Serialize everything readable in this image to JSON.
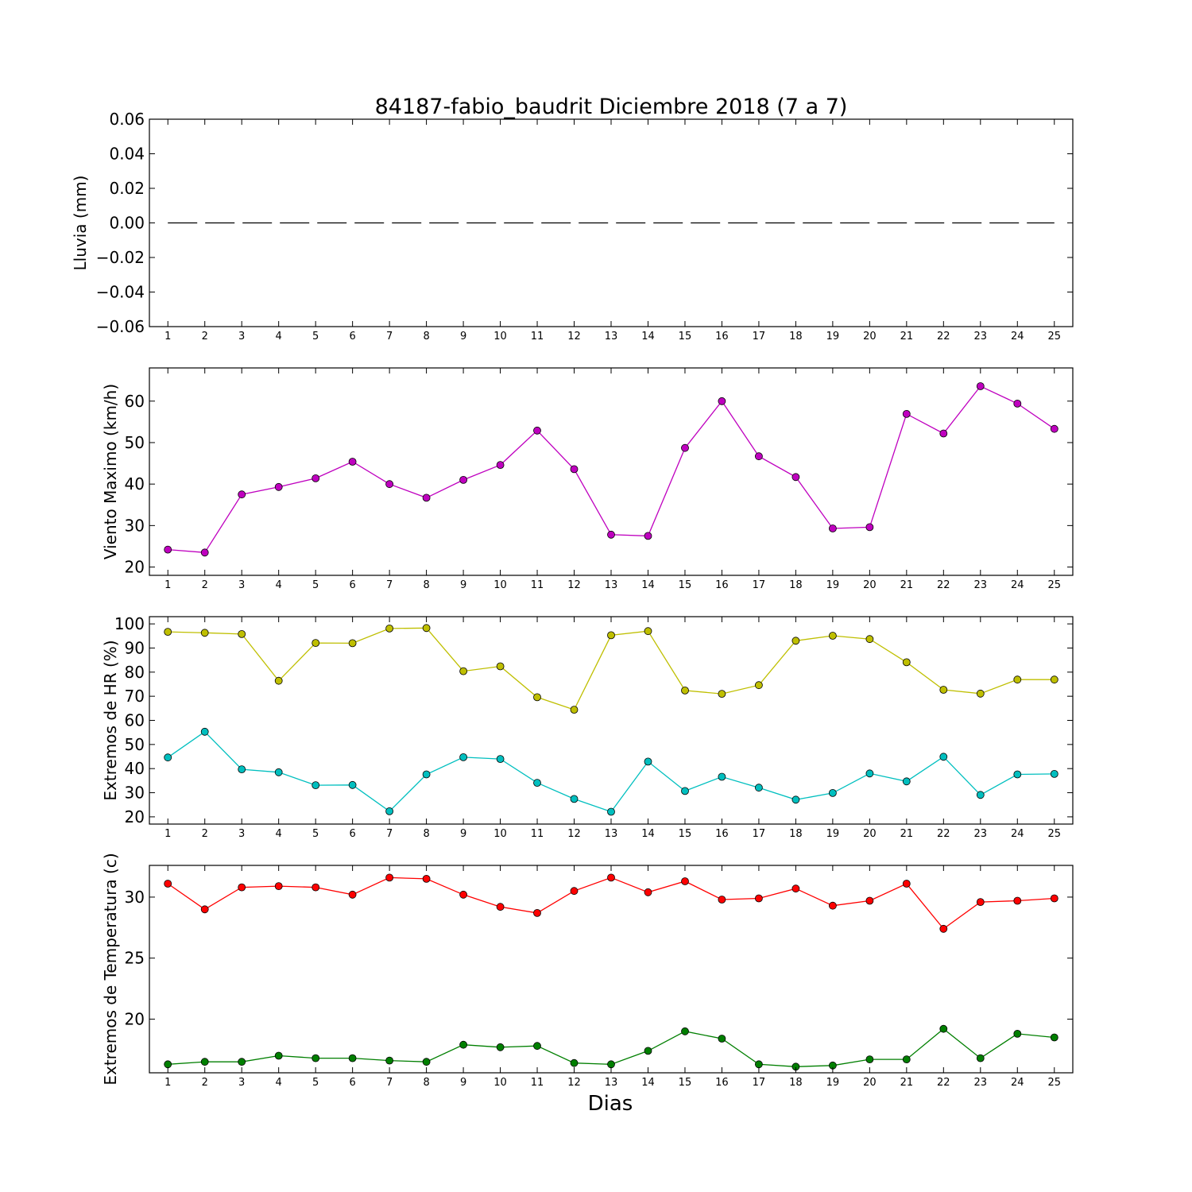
{
  "chart_data": [
    {
      "type": "line",
      "title": "84187-fabio_baudrit Diciembre 2018  (7 a 7)",
      "xlabel": "",
      "ylabel": "Lluvia (mm)",
      "x": [
        1,
        2,
        3,
        4,
        5,
        6,
        7,
        8,
        9,
        10,
        11,
        12,
        13,
        14,
        15,
        16,
        17,
        18,
        19,
        20,
        21,
        22,
        23,
        24,
        25
      ],
      "xlim": [
        0.5,
        25.5
      ],
      "ylim": [
        -0.06,
        0.06
      ],
      "yticks": [
        0.06,
        0.04,
        0.02,
        0.0,
        -0.02,
        -0.04,
        -0.06
      ],
      "ytick_labels": [
        "0.06",
        "0.04",
        "0.02",
        "0.00",
        "−0.02",
        "−0.04",
        "−0.06"
      ],
      "series": [
        {
          "color": "#000000",
          "style": "dashed",
          "marker": "none",
          "values": [
            0,
            0,
            0,
            0,
            0,
            0,
            0,
            0,
            0,
            0,
            0,
            0,
            0,
            0,
            0,
            0,
            0,
            0,
            0,
            0,
            0,
            0,
            0,
            0,
            0
          ]
        }
      ]
    },
    {
      "type": "line",
      "title": "",
      "xlabel": "",
      "ylabel": "Viento Maximo (km/h)",
      "x": [
        1,
        2,
        3,
        4,
        5,
        6,
        7,
        8,
        9,
        10,
        11,
        12,
        13,
        14,
        15,
        16,
        17,
        18,
        19,
        20,
        21,
        22,
        23,
        24,
        25
      ],
      "xlim": [
        0.5,
        25.5
      ],
      "ylim": [
        18,
        68
      ],
      "yticks": [
        20,
        30,
        40,
        50,
        60
      ],
      "ytick_labels": [
        "20",
        "30",
        "40",
        "50",
        "60"
      ],
      "series": [
        {
          "color": "#bf00bf",
          "style": "solid",
          "marker": "circle",
          "values": [
            24.2,
            23.5,
            37.5,
            39.3,
            41.4,
            45.4,
            40.0,
            36.7,
            41.0,
            44.6,
            52.9,
            43.6,
            27.8,
            27.5,
            48.7,
            60.0,
            46.7,
            41.7,
            29.3,
            29.6,
            56.9,
            52.2,
            63.6,
            59.4,
            53.3
          ]
        }
      ]
    },
    {
      "type": "line",
      "title": "",
      "xlabel": "",
      "ylabel": "Extremos de HR (%)",
      "x": [
        1,
        2,
        3,
        4,
        5,
        6,
        7,
        8,
        9,
        10,
        11,
        12,
        13,
        14,
        15,
        16,
        17,
        18,
        19,
        20,
        21,
        22,
        23,
        24,
        25
      ],
      "xlim": [
        0.5,
        25.5
      ],
      "ylim": [
        17,
        103
      ],
      "yticks": [
        20,
        30,
        40,
        50,
        60,
        70,
        80,
        90,
        100
      ],
      "ytick_labels": [
        "20",
        "30",
        "40",
        "50",
        "60",
        "70",
        "80",
        "90",
        "100"
      ],
      "series": [
        {
          "color": "#bfbf00",
          "style": "solid",
          "marker": "circle",
          "values": [
            96.7,
            96.3,
            95.8,
            76.4,
            92.1,
            92.0,
            98.1,
            98.3,
            80.4,
            82.4,
            69.6,
            64.4,
            95.3,
            97.0,
            72.4,
            71.0,
            74.6,
            93.0,
            95.1,
            93.7,
            84.1,
            72.7,
            71.1,
            76.9,
            76.9
          ]
        },
        {
          "color": "#00bfbf",
          "style": "solid",
          "marker": "circle",
          "values": [
            44.6,
            55.3,
            39.7,
            38.5,
            33.1,
            33.2,
            22.3,
            37.6,
            44.7,
            44.0,
            34.1,
            27.4,
            22.1,
            42.9,
            30.7,
            36.6,
            32.1,
            27.1,
            29.9,
            38.0,
            34.7,
            44.9,
            29.1,
            37.6,
            37.8
          ]
        }
      ]
    },
    {
      "type": "line",
      "title": "",
      "xlabel": "Dias",
      "ylabel": "Extremos de Temperatura (c)",
      "x": [
        1,
        2,
        3,
        4,
        5,
        6,
        7,
        8,
        9,
        10,
        11,
        12,
        13,
        14,
        15,
        16,
        17,
        18,
        19,
        20,
        21,
        22,
        23,
        24,
        25
      ],
      "xlim": [
        0.5,
        25.5
      ],
      "ylim": [
        15.6,
        32.6
      ],
      "yticks": [
        20,
        25,
        30
      ],
      "ytick_labels": [
        "20",
        "25",
        "30"
      ],
      "series": [
        {
          "color": "#ff0000",
          "style": "solid",
          "marker": "circle",
          "values": [
            31.1,
            29.0,
            30.8,
            30.9,
            30.8,
            30.2,
            31.6,
            31.5,
            30.2,
            29.2,
            28.7,
            30.5,
            31.6,
            30.4,
            31.3,
            29.8,
            29.9,
            30.7,
            29.3,
            29.7,
            31.1,
            27.4,
            29.6,
            29.7,
            29.9
          ]
        },
        {
          "color": "#007f00",
          "style": "solid",
          "marker": "circle",
          "values": [
            16.3,
            16.5,
            16.5,
            17.0,
            16.8,
            16.8,
            16.6,
            16.5,
            17.9,
            17.7,
            17.8,
            16.4,
            16.3,
            17.4,
            19.0,
            18.4,
            16.3,
            16.1,
            16.2,
            16.7,
            16.7,
            19.2,
            16.8,
            18.8,
            18.5
          ]
        }
      ]
    }
  ]
}
